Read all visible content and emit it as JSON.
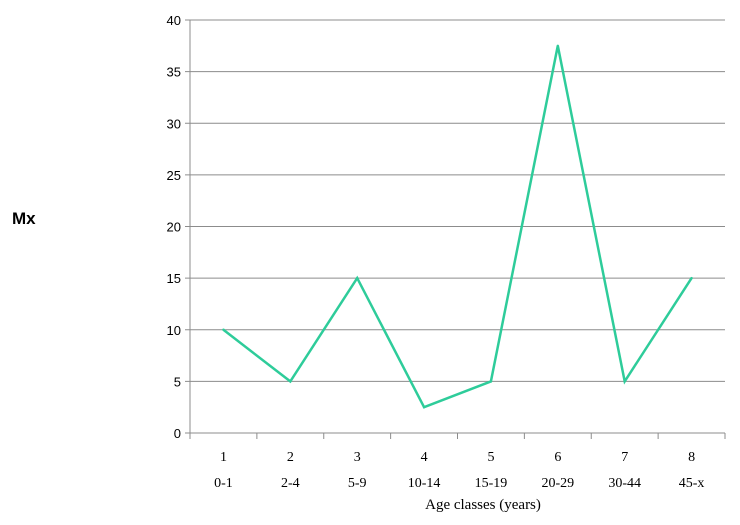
{
  "chart_data": {
    "type": "line",
    "x_numbers": [
      "1",
      "2",
      "3",
      "4",
      "5",
      "6",
      "7",
      "8"
    ],
    "categories": [
      "0-1",
      "2-4",
      "5-9",
      "10-14",
      "15-19",
      "20-29",
      "30-44",
      "45-x"
    ],
    "series": [
      {
        "values": [
          10,
          5,
          15,
          2.5,
          5,
          37.5,
          5,
          15
        ]
      }
    ],
    "xlabel": "Age classes (years)",
    "ylabel": "Mx",
    "ylim": [
      0,
      40
    ],
    "yticks": [
      0,
      5,
      10,
      15,
      20,
      25,
      30,
      35,
      40
    ],
    "grid": "horizontal",
    "legend": "none",
    "colors": {
      "line": "#2ECC9A",
      "grid": "#8c8c8c",
      "axis": "#8c8c8c"
    }
  }
}
